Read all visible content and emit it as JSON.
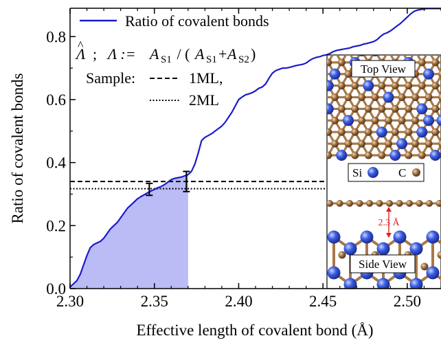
{
  "chart_data": {
    "type": "line",
    "xlabel": "Effective length of covalent bond (Å)",
    "ylabel": "Ratio of covalent bonds",
    "xlim": [
      2.3,
      2.52
    ],
    "ylim": [
      0.0,
      0.89
    ],
    "xticks": [
      2.3,
      2.35,
      2.4,
      2.45,
      2.5
    ],
    "xtick_labels": [
      "2.30",
      "2.35",
      "2.40",
      "2.45",
      "2.50"
    ],
    "yticks": [
      0.0,
      0.2,
      0.4,
      0.6,
      0.8
    ],
    "ytick_labels": [
      "0.0",
      "0.2",
      "0.4",
      "0.6",
      "0.8"
    ],
    "grid": false,
    "legend_position": "top-left",
    "colors": {
      "series": "#1a1acc",
      "fill": "#bbbbf5",
      "reference_lines": "#000000",
      "si_atom": "#3355dd",
      "c_atom": "#9a6a3a",
      "bond": "#a87848",
      "annotation": "#dd2222"
    },
    "series": [
      {
        "name": "Ratio of covalent bonds",
        "style": "solid",
        "x": [
          2.3,
          2.302,
          2.304,
          2.306,
          2.308,
          2.31,
          2.312,
          2.314,
          2.316,
          2.318,
          2.32,
          2.322,
          2.324,
          2.326,
          2.328,
          2.33,
          2.332,
          2.334,
          2.336,
          2.338,
          2.34,
          2.342,
          2.344,
          2.346,
          2.348,
          2.35,
          2.352,
          2.354,
          2.356,
          2.358,
          2.36,
          2.362,
          2.364,
          2.366,
          2.368,
          2.37,
          2.372,
          2.374,
          2.376,
          2.378,
          2.38,
          2.382,
          2.384,
          2.386,
          2.388,
          2.39,
          2.392,
          2.394,
          2.396,
          2.398,
          2.4,
          2.402,
          2.404,
          2.406,
          2.408,
          2.41,
          2.412,
          2.414,
          2.416,
          2.418,
          2.42,
          2.422,
          2.424,
          2.426,
          2.428,
          2.43,
          2.432,
          2.434,
          2.436,
          2.438,
          2.44,
          2.442,
          2.444,
          2.446,
          2.448,
          2.45,
          2.452,
          2.454,
          2.456,
          2.458,
          2.46,
          2.462,
          2.464,
          2.466,
          2.468,
          2.47,
          2.472,
          2.474,
          2.476,
          2.478,
          2.48,
          2.482,
          2.484,
          2.486,
          2.488,
          2.49,
          2.492,
          2.494,
          2.496,
          2.498,
          2.5,
          2.502,
          2.504,
          2.506,
          2.508,
          2.51,
          2.512,
          2.514,
          2.516,
          2.518,
          2.52
        ],
        "values": [
          0.005,
          0.015,
          0.025,
          0.045,
          0.075,
          0.105,
          0.13,
          0.14,
          0.145,
          0.15,
          0.16,
          0.175,
          0.19,
          0.2,
          0.21,
          0.225,
          0.24,
          0.255,
          0.265,
          0.275,
          0.285,
          0.292,
          0.298,
          0.304,
          0.31,
          0.315,
          0.32,
          0.324,
          0.33,
          0.338,
          0.346,
          0.35,
          0.352,
          0.354,
          0.358,
          0.362,
          0.372,
          0.395,
          0.43,
          0.47,
          0.48,
          0.486,
          0.492,
          0.5,
          0.508,
          0.516,
          0.528,
          0.544,
          0.56,
          0.58,
          0.6,
          0.608,
          0.615,
          0.618,
          0.622,
          0.628,
          0.636,
          0.64,
          0.65,
          0.668,
          0.684,
          0.692,
          0.696,
          0.7,
          0.7,
          0.702,
          0.705,
          0.708,
          0.71,
          0.712,
          0.716,
          0.724,
          0.73,
          0.734,
          0.736,
          0.74,
          0.742,
          0.746,
          0.752,
          0.756,
          0.758,
          0.76,
          0.762,
          0.764,
          0.768,
          0.77,
          0.772,
          0.776,
          0.778,
          0.781,
          0.784,
          0.79,
          0.8,
          0.808,
          0.812,
          0.818,
          0.826,
          0.834,
          0.842,
          0.852,
          0.862,
          0.872,
          0.88,
          0.884,
          0.886,
          0.888,
          0.889,
          0.889,
          0.889,
          0.889,
          0.889
        ]
      }
    ],
    "shaded_region": {
      "x_start": 2.3,
      "x_end": 2.37
    },
    "reference_lines": [
      {
        "name": "1ML,",
        "style": "dashed",
        "y": 0.34
      },
      {
        "name": "2ML",
        "style": "dotted",
        "y": 0.317
      }
    ],
    "error_bars": [
      {
        "x": 2.347,
        "y_low": 0.296,
        "y_high": 0.334
      },
      {
        "x": 2.369,
        "y_low": 0.308,
        "y_high": 0.372
      }
    ]
  },
  "legend": {
    "series_label": "Ratio of covalent bonds",
    "formula_hat_glyph": "^",
    "formula_lambda": "Λ",
    "formula_sep": ";",
    "formula_lhs": "Λ := ",
    "formula_a": "A",
    "formula_s1": "S1",
    "formula_s2": "S2",
    "formula_slash": " / (",
    "formula_plus": "+",
    "formula_close": ")",
    "sample_label": "Sample:",
    "dashed_label": "1ML,",
    "dotted_label": "2ML"
  },
  "inset": {
    "top_view_label": "Top View",
    "side_view_label": "Side View",
    "si_label": "Si",
    "c_label": "C",
    "distance_label": "2.3 Å"
  }
}
